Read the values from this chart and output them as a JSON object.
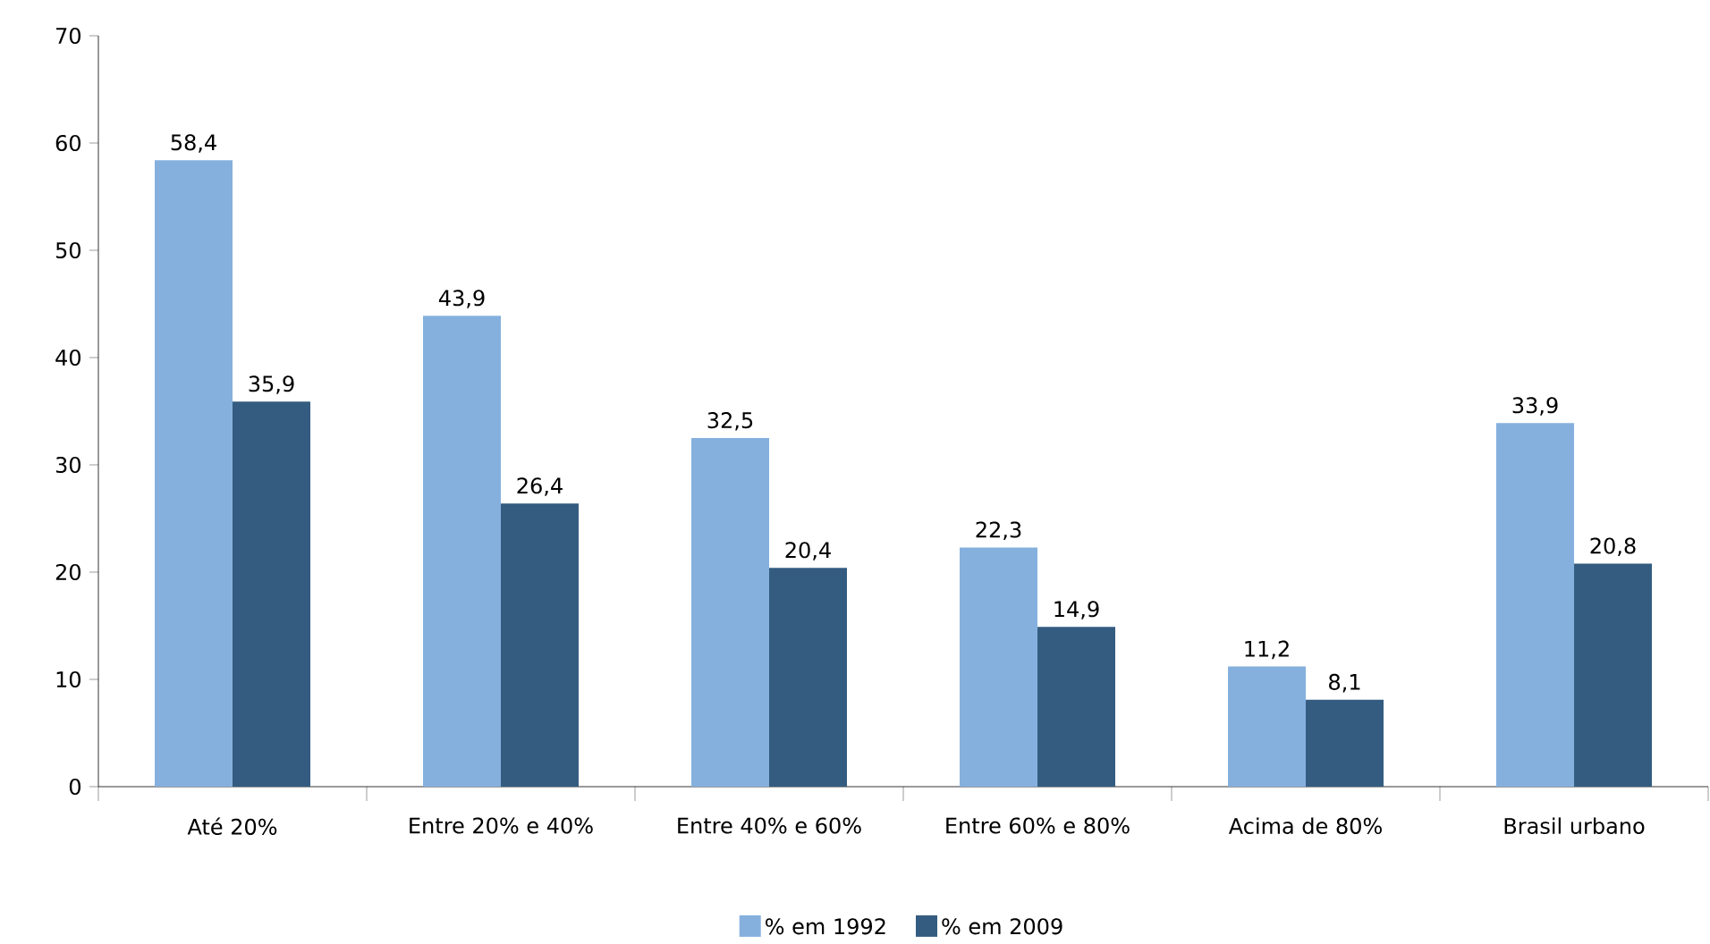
{
  "chart_data": {
    "type": "bar",
    "categories": [
      "Até 20%",
      "Entre 20% e 40%",
      "Entre 40% e 60%",
      "Entre 60% e 80%",
      "Acima de 80%",
      "Brasil urbano"
    ],
    "series": [
      {
        "name": "% em 1992",
        "color": "#85b0de",
        "values": [
          58.4,
          43.9,
          32.5,
          22.3,
          11.2,
          33.9
        ],
        "value_labels": [
          "58,4",
          "43,9",
          "32,5",
          "22,3",
          "11,2",
          "33,9"
        ]
      },
      {
        "name": "% em 2009",
        "color": "#345c80",
        "values": [
          35.9,
          26.4,
          20.4,
          14.9,
          8.1,
          20.8
        ],
        "value_labels": [
          "35,9",
          "26,4",
          "20,4",
          "14,9",
          "8,1",
          "20,8"
        ]
      }
    ],
    "ylim": [
      0,
      70
    ],
    "yticks": [
      0,
      10,
      20,
      30,
      40,
      50,
      60,
      70
    ],
    "grid": false,
    "legend": "bottom"
  }
}
